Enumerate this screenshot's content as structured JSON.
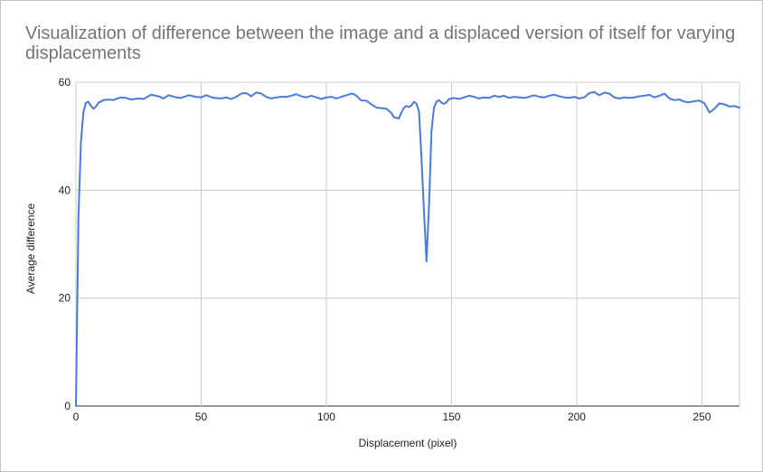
{
  "chart_data": {
    "type": "line",
    "title": "Visualization of difference between the image and a displaced version of itself for varying displacements",
    "xlabel": "Displacement (pixel)",
    "ylabel": "Average difference",
    "xlim": [
      0,
      265
    ],
    "ylim": [
      0,
      60
    ],
    "xticks": [
      "0",
      "50",
      "100",
      "150",
      "200",
      "250"
    ],
    "yticks": [
      "0",
      "20",
      "40",
      "60"
    ],
    "grid": true,
    "legend": "none",
    "series": [
      {
        "color": "#4a7bdc",
        "points": [
          [
            0,
            0
          ],
          [
            1,
            35
          ],
          [
            2,
            49
          ],
          [
            3,
            54.5
          ],
          [
            4,
            56.2
          ],
          [
            5,
            56.4
          ],
          [
            6,
            55.6
          ],
          [
            7,
            55.1
          ],
          [
            8,
            55.5
          ],
          [
            9,
            56.2
          ],
          [
            11,
            56.7
          ],
          [
            13,
            56.8
          ],
          [
            15,
            56.7
          ],
          [
            16,
            56.9
          ],
          [
            18,
            57.2
          ],
          [
            20,
            57.1
          ],
          [
            22,
            56.8
          ],
          [
            25,
            57.0
          ],
          [
            27,
            56.9
          ],
          [
            30,
            57.7
          ],
          [
            33,
            57.4
          ],
          [
            35,
            57.0
          ],
          [
            37,
            57.6
          ],
          [
            40,
            57.2
          ],
          [
            42,
            57.1
          ],
          [
            45,
            57.6
          ],
          [
            48,
            57.3
          ],
          [
            50,
            57.2
          ],
          [
            52,
            57.6
          ],
          [
            55,
            57.1
          ],
          [
            58,
            57.0
          ],
          [
            60,
            57.2
          ],
          [
            62,
            56.9
          ],
          [
            64,
            57.3
          ],
          [
            66,
            57.9
          ],
          [
            68,
            58.0
          ],
          [
            70,
            57.4
          ],
          [
            72,
            58.1
          ],
          [
            74,
            57.9
          ],
          [
            76,
            57.3
          ],
          [
            78,
            57.0
          ],
          [
            80,
            57.2
          ],
          [
            82,
            57.3
          ],
          [
            84,
            57.3
          ],
          [
            86,
            57.5
          ],
          [
            88,
            57.8
          ],
          [
            90,
            57.4
          ],
          [
            92,
            57.2
          ],
          [
            94,
            57.5
          ],
          [
            96,
            57.2
          ],
          [
            98,
            56.9
          ],
          [
            100,
            57.2
          ],
          [
            102,
            57.3
          ],
          [
            104,
            57.0
          ],
          [
            106,
            57.3
          ],
          [
            108,
            57.6
          ],
          [
            110,
            57.9
          ],
          [
            111,
            57.8
          ],
          [
            112,
            57.5
          ],
          [
            114,
            56.6
          ],
          [
            116,
            56.6
          ],
          [
            118,
            55.9
          ],
          [
            120,
            55.3
          ],
          [
            122,
            55.2
          ],
          [
            124,
            55.1
          ],
          [
            126,
            54.3
          ],
          [
            127,
            53.5
          ],
          [
            129,
            53.3
          ],
          [
            130,
            54.4
          ],
          [
            131,
            55.3
          ],
          [
            132,
            55.6
          ],
          [
            133,
            55.4
          ],
          [
            134,
            55.7
          ],
          [
            135,
            56.4
          ],
          [
            136,
            56.0
          ],
          [
            137,
            54.6
          ],
          [
            138,
            46.0
          ],
          [
            139,
            36.0
          ],
          [
            140,
            26.8
          ],
          [
            141,
            37.0
          ],
          [
            142,
            51.0
          ],
          [
            143,
            55.3
          ],
          [
            144,
            56.4
          ],
          [
            145,
            56.7
          ],
          [
            146,
            56.2
          ],
          [
            147,
            56.0
          ],
          [
            148,
            56.3
          ],
          [
            149,
            56.9
          ],
          [
            151,
            57.1
          ],
          [
            153,
            56.9
          ],
          [
            155,
            57.2
          ],
          [
            157,
            57.5
          ],
          [
            159,
            57.3
          ],
          [
            161,
            57.0
          ],
          [
            163,
            57.2
          ],
          [
            165,
            57.1
          ],
          [
            167,
            57.5
          ],
          [
            169,
            57.3
          ],
          [
            171,
            57.5
          ],
          [
            173,
            57.1
          ],
          [
            175,
            57.3
          ],
          [
            177,
            57.2
          ],
          [
            179,
            57.1
          ],
          [
            181,
            57.3
          ],
          [
            183,
            57.6
          ],
          [
            185,
            57.3
          ],
          [
            187,
            57.2
          ],
          [
            189,
            57.5
          ],
          [
            191,
            57.7
          ],
          [
            193,
            57.4
          ],
          [
            195,
            57.2
          ],
          [
            197,
            57.1
          ],
          [
            199,
            57.3
          ],
          [
            201,
            57.0
          ],
          [
            203,
            57.2
          ],
          [
            205,
            58.0
          ],
          [
            207,
            58.2
          ],
          [
            209,
            57.6
          ],
          [
            211,
            58.1
          ],
          [
            213,
            57.9
          ],
          [
            215,
            57.2
          ],
          [
            217,
            57.0
          ],
          [
            219,
            57.2
          ],
          [
            221,
            57.1
          ],
          [
            223,
            57.2
          ],
          [
            225,
            57.4
          ],
          [
            227,
            57.5
          ],
          [
            229,
            57.7
          ],
          [
            231,
            57.2
          ],
          [
            233,
            57.5
          ],
          [
            235,
            57.9
          ],
          [
            237,
            57.0
          ],
          [
            239,
            56.7
          ],
          [
            241,
            56.8
          ],
          [
            243,
            56.4
          ],
          [
            245,
            56.3
          ],
          [
            247,
            56.5
          ],
          [
            249,
            56.6
          ],
          [
            251,
            56.1
          ],
          [
            253,
            54.4
          ],
          [
            255,
            55.1
          ],
          [
            257,
            56.1
          ],
          [
            259,
            55.9
          ],
          [
            261,
            55.5
          ],
          [
            263,
            55.6
          ],
          [
            265,
            55.3
          ]
        ]
      }
    ]
  }
}
